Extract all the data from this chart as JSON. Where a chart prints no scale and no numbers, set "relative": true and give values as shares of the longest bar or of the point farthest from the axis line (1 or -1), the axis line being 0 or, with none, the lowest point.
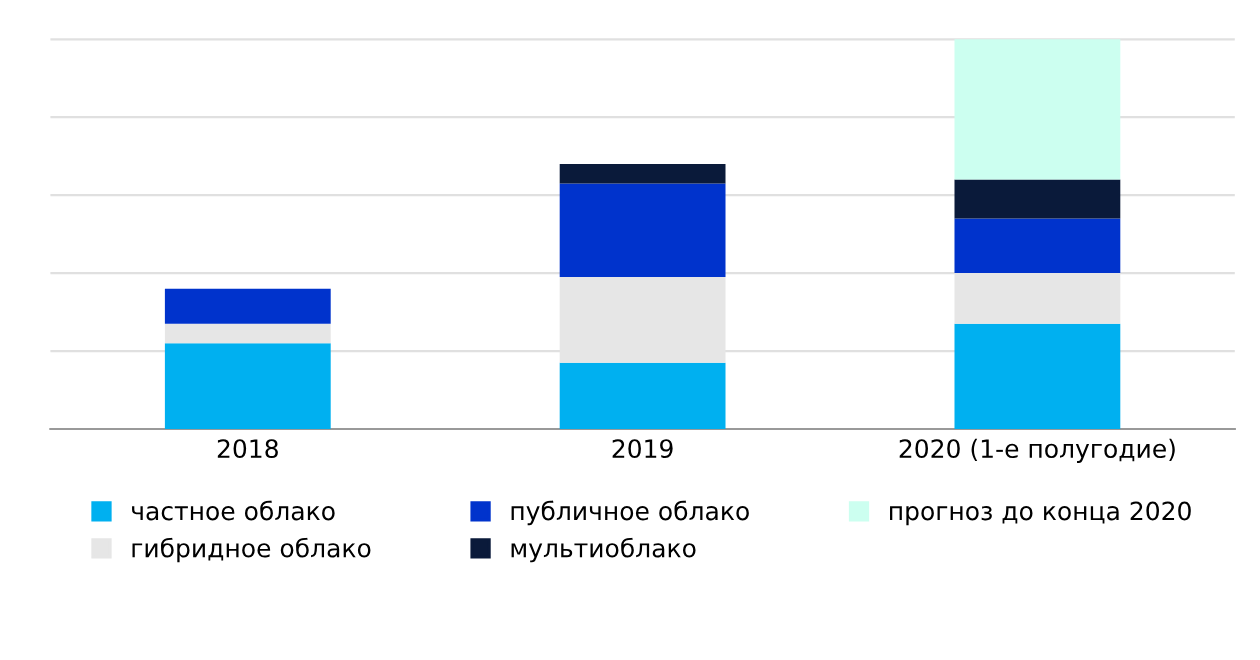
{
  "chart_data": {
    "type": "bar",
    "stacked": true,
    "relative": true,
    "grid": "y",
    "legend": "bottom",
    "categories": [
      "2018",
      "2019",
      "2020 (1-е полугодие)"
    ],
    "series": [
      {
        "name": "частное облако",
        "color": "#00b0f0",
        "values": [
          0.22,
          0.17,
          0.27
        ]
      },
      {
        "name": "гибридное облако",
        "color": "#e6e6e6",
        "values": [
          0.05,
          0.22,
          0.13
        ]
      },
      {
        "name": "публичное облако",
        "color": "#0033cc",
        "values": [
          0.09,
          0.24,
          0.14
        ]
      },
      {
        "name": "мультиоблако",
        "color": "#0a1a3a",
        "values": [
          null,
          0.05,
          0.1
        ]
      },
      {
        "name": "прогноз до конца 2020",
        "color": "#ccfff0",
        "values": [
          null,
          null,
          0.36
        ]
      }
    ]
  }
}
